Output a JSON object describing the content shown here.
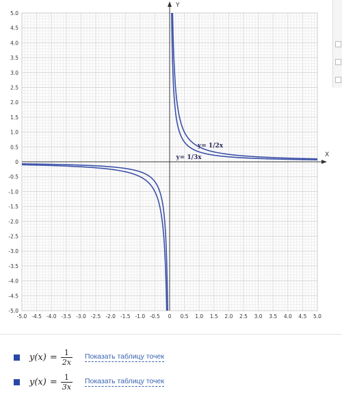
{
  "chart_data": {
    "type": "line",
    "xlim": [
      -5,
      5
    ],
    "ylim": [
      -5,
      5
    ],
    "x_tick_step": 0.5,
    "y_tick_step": 0.5,
    "x_ticks": [
      "-5.0",
      "-4.5",
      "-4.0",
      "-3.5",
      "-3.0",
      "-2.5",
      "-2.0",
      "-1.5",
      "-1.0",
      "-0.5",
      "0",
      "0.5",
      "1.0",
      "1.5",
      "2.0",
      "2.5",
      "3.0",
      "3.5",
      "4.0",
      "4.5",
      "5.0"
    ],
    "y_ticks": [
      "5.0",
      "4.5",
      "4.0",
      "3.5",
      "3.0",
      "2.5",
      "2.0",
      "1.5",
      "1.0",
      "0.5",
      "0",
      "-0.5",
      "-1.0",
      "-1.5",
      "-2.0",
      "-2.5",
      "-3.0",
      "-3.5",
      "-4.0",
      "-4.5",
      "-5.0"
    ],
    "xlabel": "X",
    "ylabel": "Y",
    "grid": true,
    "series": [
      {
        "formula_lhs": "y(x)",
        "numerator": "1",
        "denominator": "2x",
        "coefficient": 0.5,
        "annotation": "y= 1/2x",
        "color": "#3a50a8"
      },
      {
        "formula_lhs": "y(x)",
        "numerator": "1",
        "denominator": "3x",
        "coefficient": 0.3333,
        "annotation": "y= 1/3x",
        "color": "#3a50a8"
      }
    ]
  },
  "legend": {
    "link_label": "Показать таблицу точек",
    "swatch_color": "#2a47a6"
  }
}
